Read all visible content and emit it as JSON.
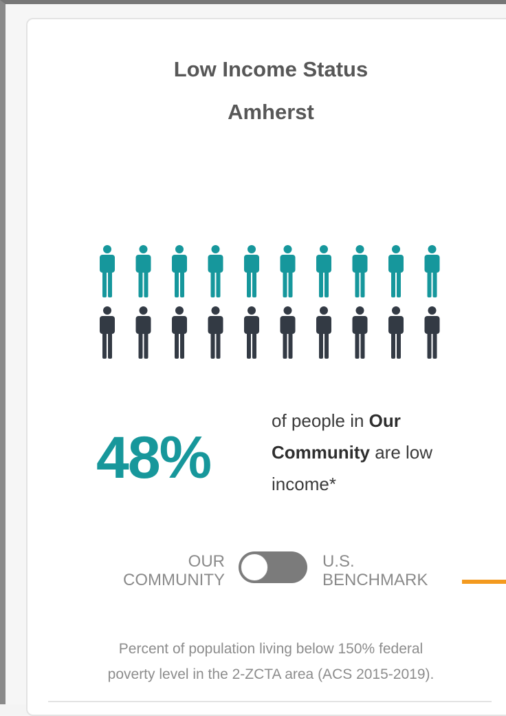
{
  "card": {
    "title": "Low Income Status",
    "subtitle": "Amherst",
    "stat": "48%",
    "description": {
      "before": "of people in ",
      "bold": "Our Community",
      "after": " are low income*"
    },
    "toggle": {
      "left": [
        "OUR",
        "COMMUNITY"
      ],
      "right": [
        "U.S.",
        "BENCHMARK"
      ]
    },
    "footnote": [
      "Percent of population living below 150% federal",
      "poverty level in the 2-ZCTA area (ACS 2015-2019)."
    ]
  }
}
